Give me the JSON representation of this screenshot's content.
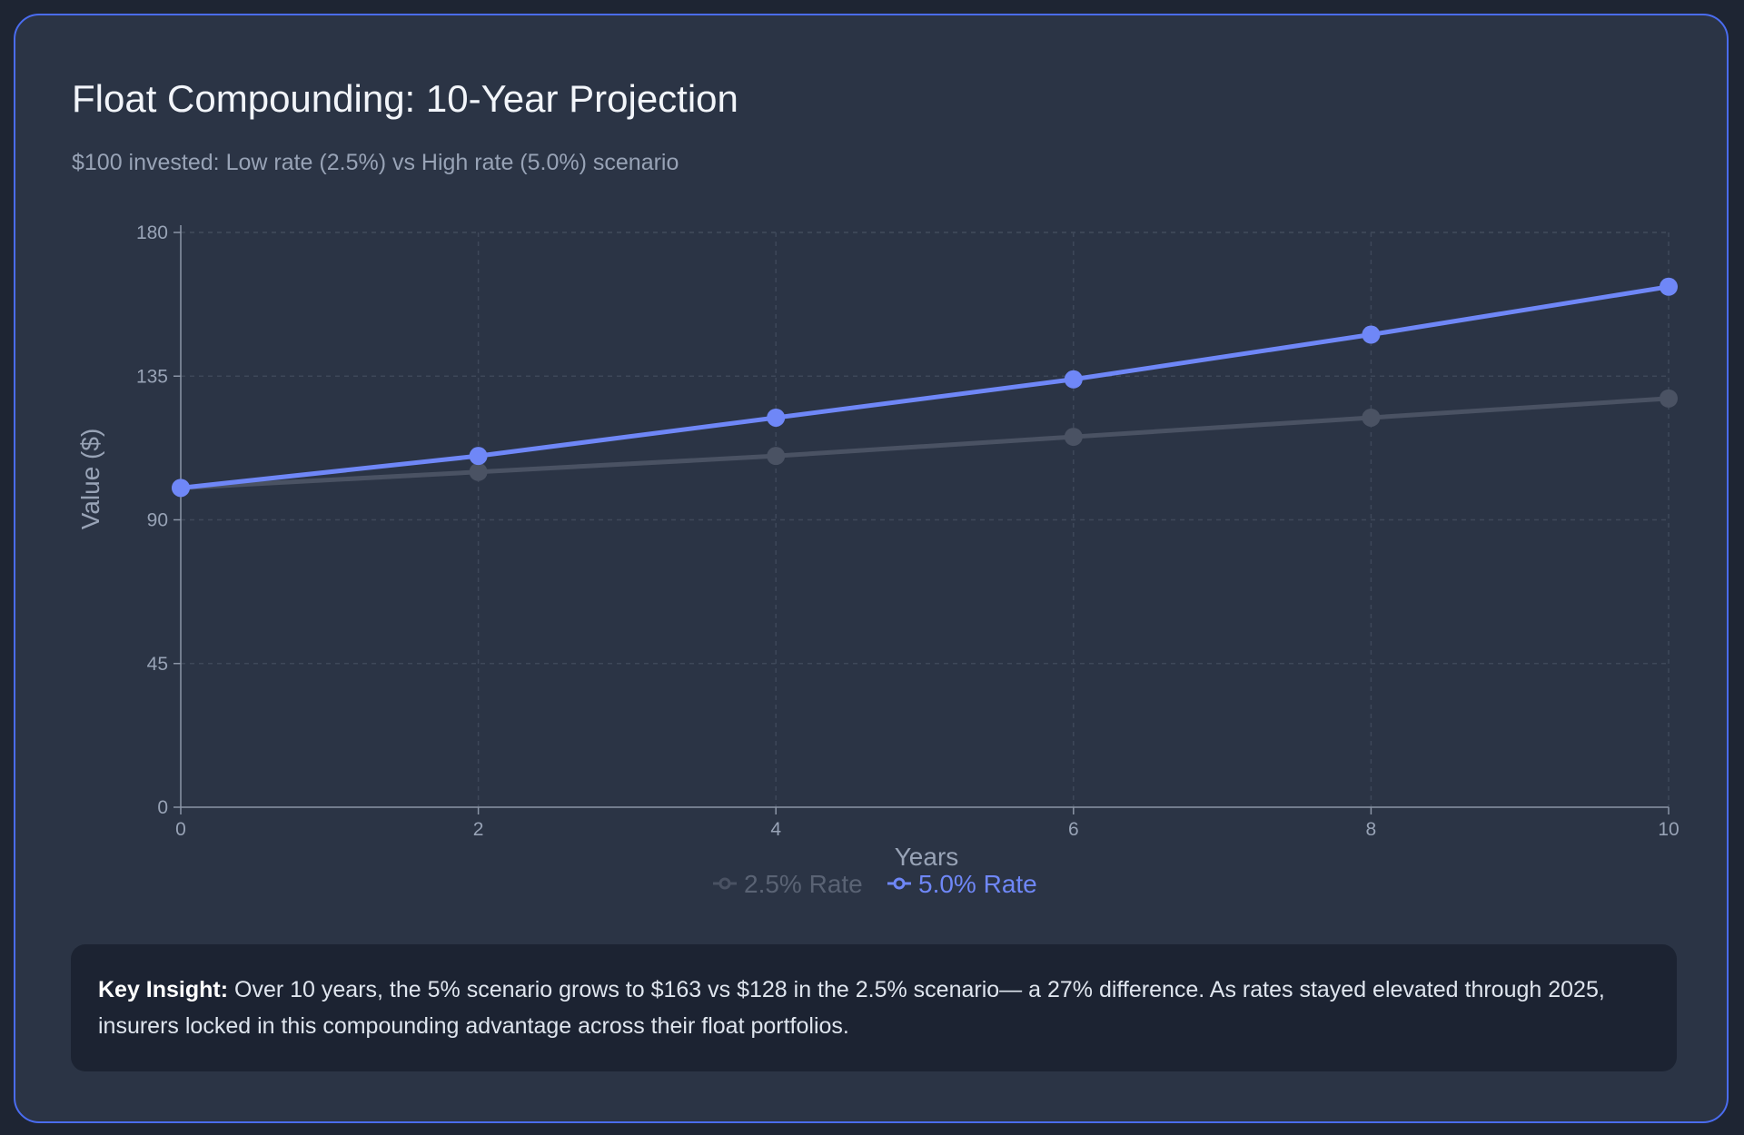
{
  "header": {
    "title": "Float Compounding: 10-Year Projection",
    "subtitle": "$100 invested: Low rate (2.5%) vs High rate (5.0%) scenario"
  },
  "colors": {
    "low_rate": "#4a5263",
    "high_rate": "#6f87f7",
    "grid": "#3e4859",
    "axis": "#8b95a6"
  },
  "chart_data": {
    "type": "line",
    "title": "",
    "xlabel": "Years",
    "ylabel": "Value ($)",
    "x": [
      0,
      2,
      4,
      6,
      8,
      10
    ],
    "xlim": [
      0,
      10
    ],
    "ylim": [
      0,
      180
    ],
    "x_ticks": [
      "0",
      "2",
      "4",
      "6",
      "8",
      "10"
    ],
    "y_ticks": [
      "0",
      "45",
      "90",
      "135",
      "180"
    ],
    "grid": true,
    "legend_position": "bottom-center",
    "series": [
      {
        "name": "2.5% Rate",
        "values": [
          100,
          105,
          110,
          116,
          122,
          128
        ]
      },
      {
        "name": "5.0% Rate",
        "values": [
          100,
          110,
          122,
          134,
          148,
          163
        ]
      }
    ]
  },
  "insight": {
    "label": "Key Insight:",
    "text": "Over 10 years, the 5% scenario grows to $163 vs $128 in the 2.5% scenario— a 27% difference. As rates stayed elevated through 2025, insurers locked in this compounding advantage across their float portfolios."
  }
}
